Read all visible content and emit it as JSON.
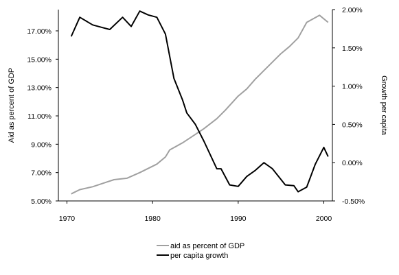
{
  "chart_data": {
    "type": "line",
    "x_axis": {
      "ticks": [
        1970,
        1980,
        1990,
        2000
      ],
      "range": [
        1969,
        2001
      ],
      "tick_labels": [
        "1970",
        "1980",
        "1990",
        "2000"
      ]
    },
    "y_left": {
      "label": "Aid as percent of GDP",
      "range": [
        5,
        18.5
      ],
      "ticks": [
        5,
        7,
        9,
        11,
        13,
        15,
        17
      ],
      "tick_labels": [
        "5.00%",
        "7.00%",
        "9.00%",
        "11.00%",
        "13.00%",
        "15.00%",
        "17.00%"
      ]
    },
    "y_right": {
      "label": "Growth per capita",
      "range": [
        -0.5,
        2.0
      ],
      "ticks": [
        -0.5,
        0.0,
        0.5,
        1.0,
        1.5,
        2.0
      ],
      "tick_labels": [
        "-0.50%",
        "0.00%",
        "0.50%",
        "1.00%",
        "1.50%",
        "2.00%"
      ]
    },
    "series": [
      {
        "name": "aid as percent of GDP",
        "axis": "left",
        "color": "#a0a0a0",
        "x": [
          1970.5,
          1971.5,
          1973,
          1974.5,
          1975.5,
          1977,
          1978.5,
          1980.5,
          1981.5,
          1982,
          1983.5,
          1985,
          1986,
          1987.5,
          1988.5,
          1990,
          1991,
          1992,
          1993.5,
          1995,
          1996,
          1997,
          1998,
          1999.5,
          2000.5
        ],
        "y": [
          5.5,
          5.8,
          6.0,
          6.3,
          6.5,
          6.6,
          7.0,
          7.6,
          8.1,
          8.6,
          9.1,
          9.7,
          10.1,
          10.8,
          11.4,
          12.4,
          12.9,
          13.6,
          14.5,
          15.4,
          15.9,
          16.5,
          17.6,
          18.1,
          17.6
        ]
      },
      {
        "name": "per capita growth",
        "axis": "right",
        "color": "#000000",
        "x": [
          1970.5,
          1971.5,
          1973,
          1974,
          1975,
          1976.5,
          1977.5,
          1978.5,
          1979.5,
          1980.5,
          1981.5,
          1982.5,
          1983.5,
          1984,
          1985,
          1986,
          1987.5,
          1988,
          1989,
          1990,
          1991,
          1992,
          1993,
          1994,
          1995.5,
          1996.5,
          1997,
          1998,
          1999,
          2000,
          2000.5
        ],
        "y": [
          1.65,
          1.9,
          1.8,
          1.77,
          1.74,
          1.9,
          1.78,
          1.98,
          1.93,
          1.9,
          1.68,
          1.1,
          0.82,
          0.65,
          0.5,
          0.28,
          -0.08,
          -0.08,
          -0.29,
          -0.31,
          -0.18,
          -0.1,
          0.0,
          -0.08,
          -0.29,
          -0.3,
          -0.38,
          -0.32,
          -0.02,
          0.2,
          0.08
        ]
      }
    ],
    "legend": {
      "placement": "bottom-center",
      "items": [
        "aid as percent of GDP",
        "per capita growth"
      ]
    }
  }
}
